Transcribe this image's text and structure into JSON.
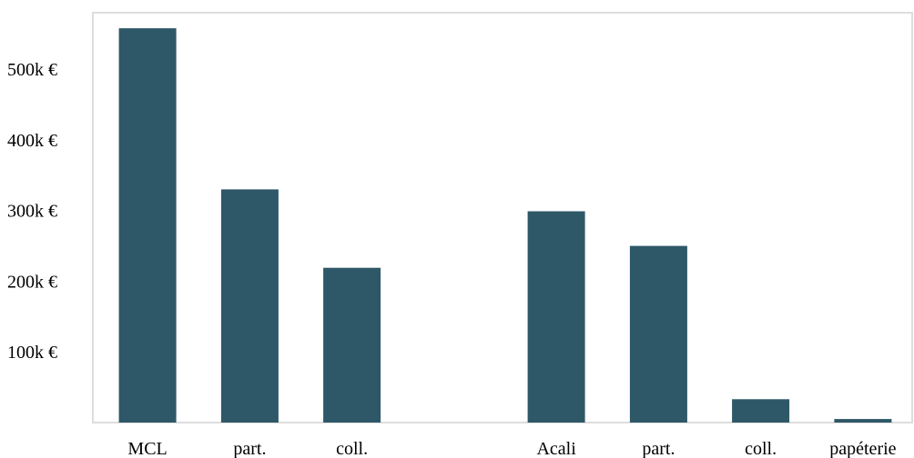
{
  "chart_data": {
    "type": "bar",
    "categories": [
      "MCL",
      "part.",
      "coll.",
      "",
      "Acali",
      "part.",
      "coll.",
      "papéterie"
    ],
    "values": [
      558000,
      330000,
      219000,
      null,
      299000,
      250000,
      33000,
      5000
    ],
    "yticks": [
      100000,
      200000,
      300000,
      400000,
      500000
    ],
    "ytick_labels": [
      "100k €",
      "200k €",
      "300k €",
      "400k €",
      "500k €"
    ],
    "ylim": [
      0,
      580000
    ],
    "grid": false,
    "colors": {
      "bar": "#2e5868",
      "frame": "#dddddd"
    }
  }
}
